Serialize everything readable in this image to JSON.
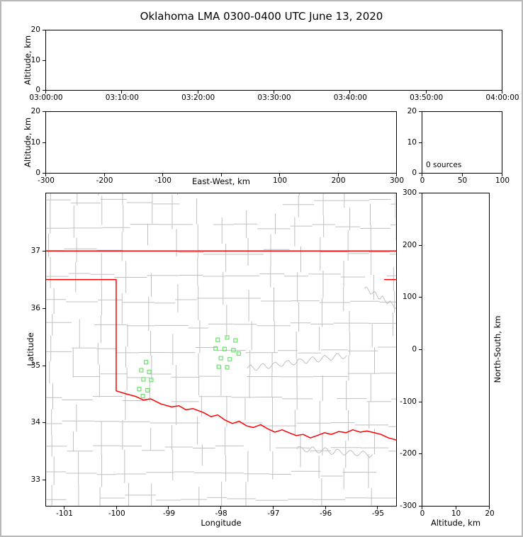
{
  "title": "Oklahoma LMA 0300-0400 UTC June 13, 2020",
  "annotation": {
    "sources_label": "0 sources"
  },
  "colors": {
    "background": "#ffffff",
    "frame": "#b9b9b9",
    "axis": "#000000",
    "county_lines": "#c0c0c0",
    "state_border": "#ff0000",
    "station_marker": "#6ae26a"
  },
  "chart_data": [
    {
      "id": "time_height",
      "type": "scatter",
      "panel": "altitude-vs-time",
      "ylabel": "Altitude, km",
      "ylim": [
        0,
        20
      ],
      "yticks": [
        {
          "v": 0,
          "l": "0"
        },
        {
          "v": 10,
          "l": "10"
        },
        {
          "v": 20,
          "l": "20"
        }
      ],
      "xlim": [
        0,
        6
      ],
      "xticks": [
        {
          "v": 0,
          "l": "03:00:00"
        },
        {
          "v": 1,
          "l": "03:10:00"
        },
        {
          "v": 2,
          "l": "03:20:00"
        },
        {
          "v": 3,
          "l": "03:30:00"
        },
        {
          "v": 4,
          "l": "03:40:00"
        },
        {
          "v": 5,
          "l": "03:50:00"
        },
        {
          "v": 6,
          "l": "04:00:00"
        }
      ],
      "points": []
    },
    {
      "id": "ew_height",
      "type": "scatter",
      "panel": "altitude-vs-east-west",
      "xlabel": "East-West, km",
      "ylabel": "Altitude, km",
      "xlim": [
        -300,
        300
      ],
      "xticks": [
        {
          "v": -300,
          "l": "-300"
        },
        {
          "v": -200,
          "l": "-200"
        },
        {
          "v": -100,
          "l": "-100"
        },
        {
          "v": 0,
          "l": ""
        },
        {
          "v": 100,
          "l": "100"
        },
        {
          "v": 200,
          "l": "200"
        },
        {
          "v": 300,
          "l": "300"
        }
      ],
      "ylim": [
        0,
        20
      ],
      "yticks": [
        {
          "v": 0,
          "l": "0"
        },
        {
          "v": 10,
          "l": "10"
        },
        {
          "v": 20,
          "l": "20"
        }
      ],
      "points": []
    },
    {
      "id": "histogram",
      "type": "histogram",
      "panel": "source-count-histogram",
      "annotation": "0 sources",
      "xlim": [
        0,
        100
      ],
      "xticks": [
        {
          "v": 0,
          "l": "0"
        },
        {
          "v": 50,
          "l": "50"
        },
        {
          "v": 100,
          "l": "100"
        }
      ],
      "ylim": [
        0,
        20
      ],
      "yticks": [
        {
          "v": 0,
          "l": "0"
        },
        {
          "v": 10,
          "l": "10"
        },
        {
          "v": 20,
          "l": "20"
        }
      ],
      "values": []
    },
    {
      "id": "map",
      "type": "map-scatter",
      "panel": "plan-view-map",
      "xlabel": "Longitude",
      "ylabel": "Latitude",
      "xlim": [
        -101.353,
        -94.638
      ],
      "xticks": [
        {
          "v": -101,
          "l": "-101"
        },
        {
          "v": -100,
          "l": "-100"
        },
        {
          "v": -99,
          "l": "-99"
        },
        {
          "v": -98,
          "l": "-98"
        },
        {
          "v": -97,
          "l": "-97"
        },
        {
          "v": -96,
          "l": "-96"
        },
        {
          "v": -95,
          "l": "-95"
        }
      ],
      "ylim": [
        32.542,
        38.016
      ],
      "yticks": [
        {
          "v": 33,
          "l": "33"
        },
        {
          "v": 34,
          "l": "34"
        },
        {
          "v": 35,
          "l": "35"
        },
        {
          "v": 36,
          "l": "36"
        },
        {
          "v": 37,
          "l": "37"
        }
      ],
      "stations": [
        [
          -99.43,
          35.06
        ],
        [
          -99.52,
          34.92
        ],
        [
          -99.37,
          34.89
        ],
        [
          -99.48,
          34.76
        ],
        [
          -99.33,
          34.75
        ],
        [
          -99.56,
          34.59
        ],
        [
          -99.4,
          34.57
        ],
        [
          -99.49,
          34.47
        ],
        [
          -98.06,
          35.45
        ],
        [
          -97.88,
          35.49
        ],
        [
          -97.72,
          35.44
        ],
        [
          -98.1,
          35.3
        ],
        [
          -97.93,
          35.29
        ],
        [
          -97.76,
          35.27
        ],
        [
          -98.0,
          35.13
        ],
        [
          -97.83,
          35.11
        ],
        [
          -97.66,
          35.21
        ],
        [
          -98.04,
          34.98
        ],
        [
          -97.88,
          34.97
        ]
      ],
      "points": []
    },
    {
      "id": "ns_height",
      "type": "scatter",
      "panel": "north-south-vs-altitude",
      "xlabel": "Altitude, km",
      "ylabel": "North-South, km",
      "xlim": [
        0,
        20
      ],
      "xticks": [
        {
          "v": 0,
          "l": "0"
        },
        {
          "v": 10,
          "l": "10"
        },
        {
          "v": 20,
          "l": "20"
        }
      ],
      "ylim": [
        -300,
        300
      ],
      "yticks": [
        {
          "v": 300,
          "l": "300"
        },
        {
          "v": 200,
          "l": "200"
        },
        {
          "v": 100,
          "l": "100"
        },
        {
          "v": 0,
          "l": "0"
        },
        {
          "v": -100,
          "l": "-100"
        },
        {
          "v": -200,
          "l": "-200"
        },
        {
          "v": -300,
          "l": "-300"
        }
      ],
      "points": []
    }
  ],
  "map_layers": {
    "state_border_color": "#ff0000",
    "state_border": [
      [
        [
          -101.353,
          37.0
        ],
        [
          -94.638,
          37.0
        ]
      ],
      [
        [
          -94.88,
          36.5
        ],
        [
          -94.638,
          36.5
        ]
      ],
      [
        [
          -101.353,
          36.5
        ],
        [
          -100.0,
          36.5
        ],
        [
          -100.0,
          34.56
        ],
        [
          -99.82,
          34.51
        ],
        [
          -99.62,
          34.46
        ],
        [
          -99.48,
          34.4
        ],
        [
          -99.34,
          34.42
        ],
        [
          -99.14,
          34.33
        ],
        [
          -98.94,
          34.28
        ],
        [
          -98.8,
          34.3
        ],
        [
          -98.67,
          34.23
        ],
        [
          -98.53,
          34.25
        ],
        [
          -98.33,
          34.18
        ],
        [
          -98.19,
          34.11
        ],
        [
          -98.06,
          34.14
        ],
        [
          -97.92,
          34.05
        ],
        [
          -97.78,
          33.99
        ],
        [
          -97.65,
          34.03
        ],
        [
          -97.51,
          33.95
        ],
        [
          -97.38,
          33.92
        ],
        [
          -97.24,
          33.97
        ],
        [
          -97.11,
          33.9
        ],
        [
          -96.97,
          33.84
        ],
        [
          -96.83,
          33.88
        ],
        [
          -96.7,
          33.83
        ],
        [
          -96.56,
          33.78
        ],
        [
          -96.43,
          33.8
        ],
        [
          -96.29,
          33.74
        ],
        [
          -96.16,
          33.78
        ],
        [
          -96.02,
          33.83
        ],
        [
          -95.89,
          33.8
        ],
        [
          -95.75,
          33.85
        ],
        [
          -95.61,
          33.83
        ],
        [
          -95.48,
          33.88
        ],
        [
          -95.34,
          33.84
        ],
        [
          -95.21,
          33.86
        ],
        [
          -95.07,
          33.83
        ],
        [
          -94.94,
          33.8
        ],
        [
          -94.8,
          33.74
        ],
        [
          -94.638,
          33.7
        ]
      ]
    ],
    "county_grid": {
      "color": "#c0c0c0",
      "cell_w": 0.47,
      "cell_h": 0.43,
      "jitter": 0.13,
      "skip": 0.1,
      "seed": 11
    },
    "meanders": [
      {
        "from": [
          -97.5,
          34.95
        ],
        "to": [
          -95.6,
          35.18
        ],
        "amp": 0.05,
        "waves": 8
      },
      {
        "from": [
          -96.55,
          33.55
        ],
        "to": [
          -95.1,
          33.45
        ],
        "amp": 0.05,
        "waves": 6
      },
      {
        "from": [
          -95.25,
          36.35
        ],
        "to": [
          -94.64,
          36.02
        ],
        "amp": 0.04,
        "waves": 4
      }
    ]
  }
}
